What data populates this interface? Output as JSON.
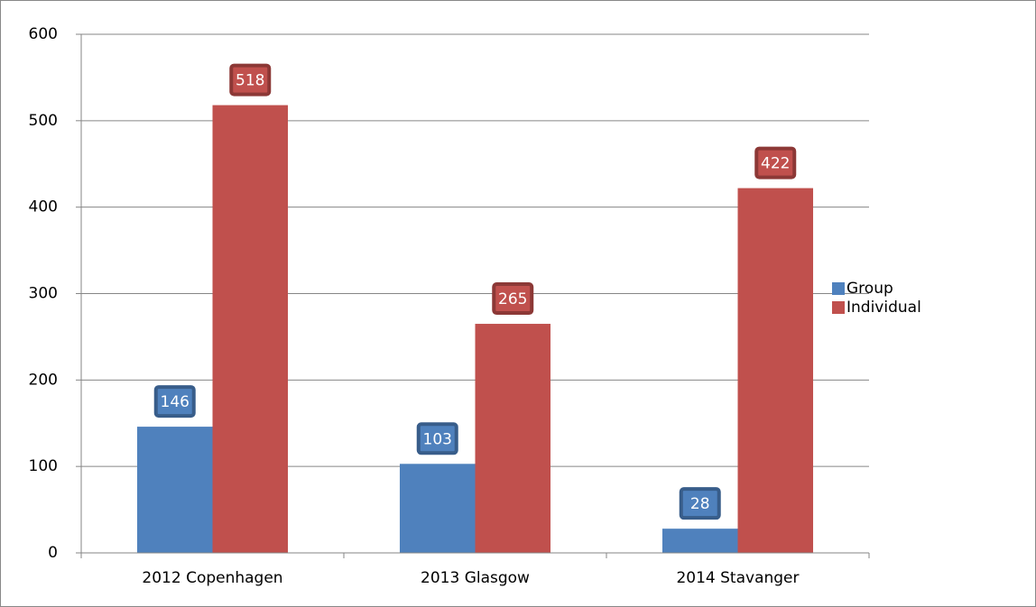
{
  "chart_data": {
    "type": "bar",
    "categories": [
      "2012 Copenhagen",
      "2013 Glasgow",
      "2014 Stavanger"
    ],
    "series": [
      {
        "name": "Group",
        "color": "#4f81bd",
        "values": [
          146,
          103,
          28
        ]
      },
      {
        "name": "Individual",
        "color": "#c0504d",
        "values": [
          518,
          265,
          422
        ]
      }
    ],
    "ylim": [
      0,
      600
    ],
    "yticks": [
      0,
      100,
      200,
      300,
      400,
      500,
      600
    ],
    "grid": true,
    "legend": "right",
    "data_labels": true
  }
}
